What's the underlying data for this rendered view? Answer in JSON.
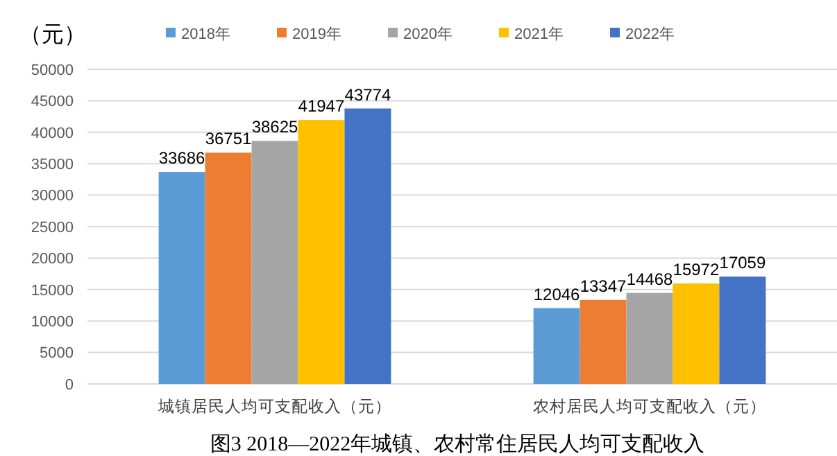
{
  "chart_data": {
    "type": "bar",
    "title": "图3  2018—2022年城镇、农村常住居民人均可支配收入",
    "ylabel": "（元）",
    "categories": [
      "城镇居民人均可支配收入（元）",
      "农村居民人均可支配收入（元）"
    ],
    "series": [
      {
        "name": "2018年",
        "color": "#5b9bd5",
        "values": [
          33686,
          12046
        ]
      },
      {
        "name": "2019年",
        "color": "#ed7d31",
        "values": [
          36751,
          13347
        ]
      },
      {
        "name": "2020年",
        "color": "#a5a5a5",
        "values": [
          38625,
          14468
        ]
      },
      {
        "name": "2021年",
        "color": "#ffc000",
        "values": [
          41947,
          15972
        ]
      },
      {
        "name": "2022年",
        "color": "#4472c4",
        "values": [
          43774,
          17059
        ]
      }
    ],
    "ylim": [
      0,
      50000
    ],
    "yticks": [
      0,
      5000,
      10000,
      15000,
      20000,
      25000,
      30000,
      35000,
      40000,
      45000,
      50000
    ],
    "grid": "y",
    "legend": "top",
    "data_labels": true
  }
}
